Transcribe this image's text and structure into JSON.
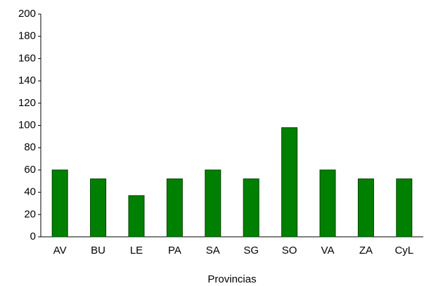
{
  "chart_data": {
    "type": "bar",
    "x_label": "Provincias",
    "categories": [
      "AV",
      "BU",
      "LE",
      "PA",
      "SA",
      "SG",
      "SO",
      "VA",
      "ZA",
      "CyL"
    ],
    "values": [
      60,
      52,
      37,
      52,
      60,
      52,
      98,
      60,
      52,
      52
    ],
    "color": "#008000",
    "ylim": [
      0,
      200
    ],
    "yticks": [
      0,
      20,
      40,
      60,
      80,
      100,
      120,
      140,
      160,
      180,
      200
    ],
    "grid": false
  }
}
